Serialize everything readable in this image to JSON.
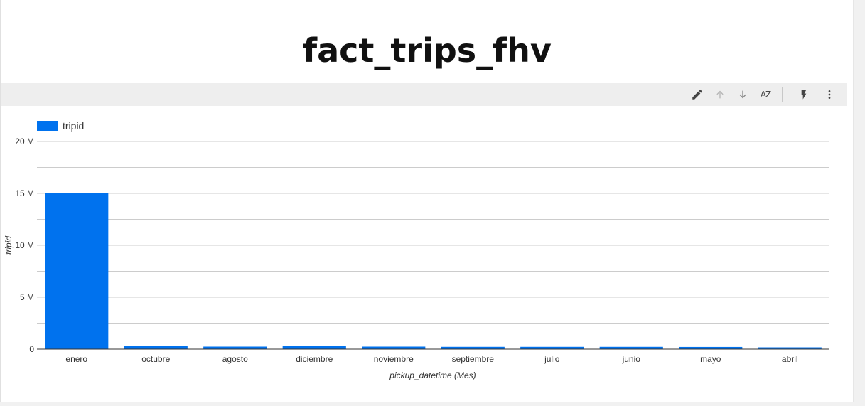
{
  "page": {
    "title": "fact_trips_fhv"
  },
  "toolbar": {
    "icons": [
      "pencil-icon",
      "arrow-up-icon",
      "arrow-down-icon",
      "sort-az-icon",
      "bolt-icon",
      "more-vert-icon"
    ],
    "sort_label": "AZ"
  },
  "colors": {
    "bar": "#0072ee",
    "grid": "#cccccc",
    "axis": "#333333",
    "text": "#333333"
  },
  "chart_data": {
    "type": "bar",
    "title": "",
    "xlabel": "pickup_datetime (Mes)",
    "ylabel": "tripid",
    "legend": {
      "position": "top-left",
      "entries": [
        "tripid"
      ]
    },
    "categories": [
      "enero",
      "octubre",
      "agosto",
      "diciembre",
      "noviembre",
      "septiembre",
      "julio",
      "junio",
      "mayo",
      "abril"
    ],
    "series": [
      {
        "name": "tripid",
        "values": [
          15000000,
          280000,
          240000,
          300000,
          240000,
          220000,
          220000,
          220000,
          210000,
          170000
        ]
      }
    ],
    "ylim": [
      0,
      20000000
    ],
    "yticks": [
      0,
      5000000,
      10000000,
      15000000,
      20000000
    ],
    "ytick_labels": [
      "0",
      "5 M",
      "10 M",
      "15 M",
      "20 M"
    ],
    "grid": true
  }
}
